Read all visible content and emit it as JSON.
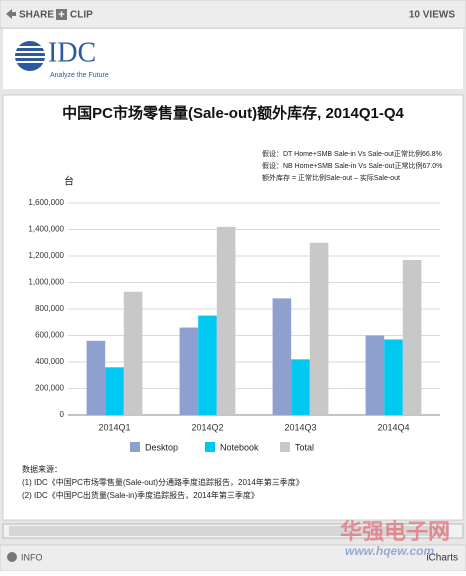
{
  "toolbar": {
    "share": "SHARE",
    "clip": "CLIP",
    "views": "10 VIEWS"
  },
  "logo": {
    "name": "IDC",
    "tagline": "Analyze the Future"
  },
  "footer": {
    "info": "INFO",
    "brand": "iCharts"
  },
  "watermark": {
    "name": "华强电子网",
    "url": "www.hqew.com"
  },
  "chart_data": {
    "type": "bar",
    "title": "中国PC市场零售量(Sale-out)额外库存, 2014Q1-Q4",
    "notes": [
      "假设：DT Home+SMB Sale-in Vs Sale-out正常比例66.8%",
      "假设：NB Home+SMB Sale-in Vs Sale-out正常比例67.0%",
      "额外库存 = 正常比例Sale-out – 实际Sale-out"
    ],
    "y_label": "台",
    "categories": [
      "2014Q1",
      "2014Q2",
      "2014Q3",
      "2014Q4"
    ],
    "series": [
      {
        "name": "Desktop",
        "color": "#8ea0cf",
        "values": [
          560000,
          660000,
          880000,
          600000
        ]
      },
      {
        "name": "Notebook",
        "color": "#00c8f0",
        "values": [
          360000,
          750000,
          420000,
          570000
        ]
      },
      {
        "name": "Total",
        "color": "#c8c8c8",
        "values": [
          930000,
          1420000,
          1300000,
          1170000
        ]
      }
    ],
    "ylim": [
      0,
      1600000
    ],
    "yticks": [
      0,
      {
        "value": 200000,
        "label": "200,000"
      },
      {
        "value": 400000,
        "label": "400,000"
      },
      {
        "value": 600000,
        "label": "600,000"
      },
      {
        "value": 800000,
        "label": "800,000"
      },
      {
        "value": 1000000,
        "label": "1,000,000"
      },
      {
        "value": 1200000,
        "label": "1,200,000"
      },
      {
        "value": 1400000,
        "label": "1,400,000"
      },
      {
        "value": 1600000,
        "label": "1,600,000"
      }
    ],
    "grid": true,
    "legend": "bottom",
    "source": [
      "数据来源：",
      "(1) IDC《中国PC市场零售量(Sale-out)分通路季度追踪报告，2014年第三季度》",
      "(2) IDC《中国PC出货量(Sale-in)季度追踪报告，2014年第三季度》"
    ]
  }
}
